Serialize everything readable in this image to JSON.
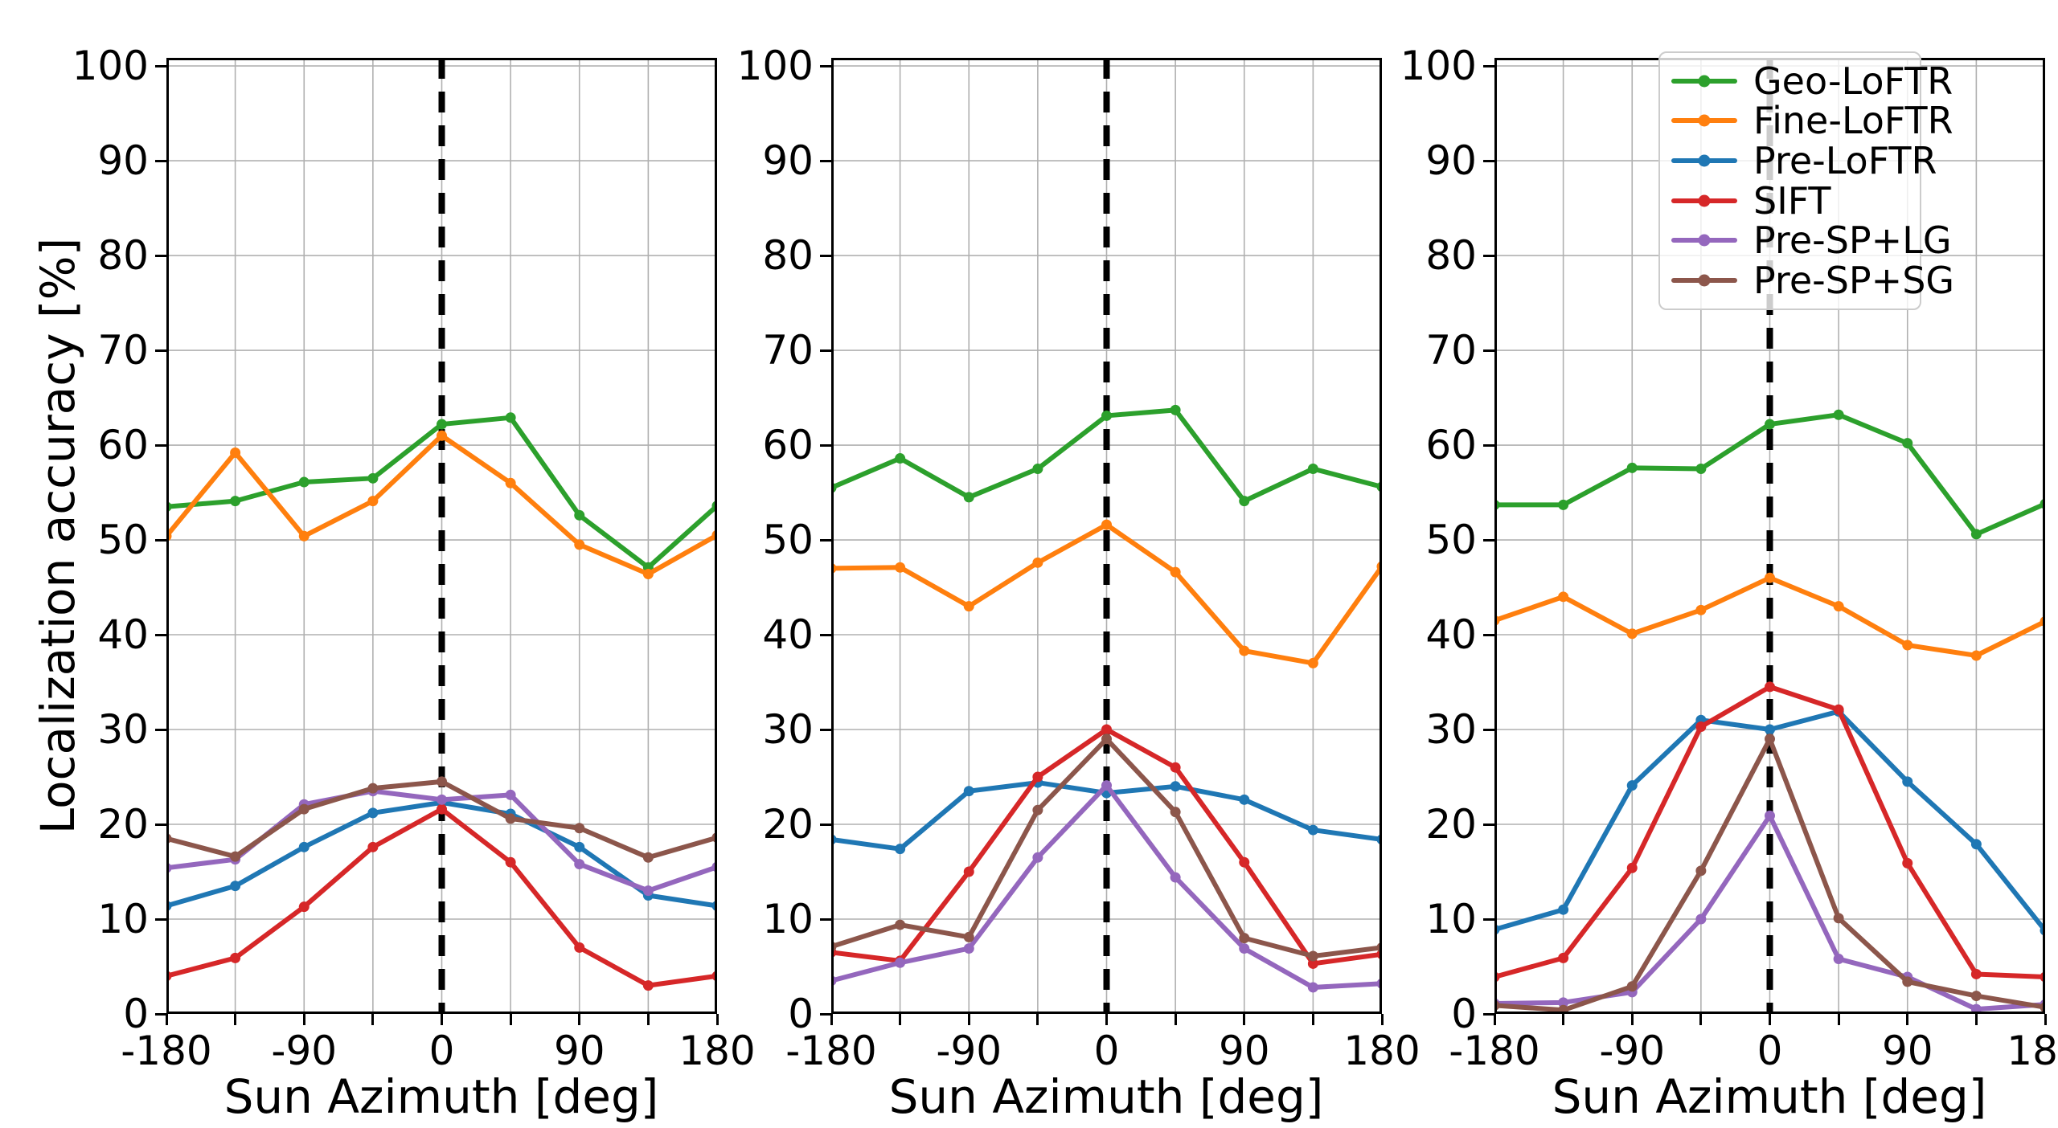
{
  "labels": {
    "ylabel": "Localization accuracy [%]",
    "xlabel": "Sun Azimuth [deg]"
  },
  "axes": {
    "xlim": [
      -180,
      180
    ],
    "ylim": [
      0,
      100.85
    ],
    "x_tick_step_deg": 45,
    "x_labeled_ticks": [
      -180,
      -90,
      0,
      90,
      180
    ],
    "y_ticks": [
      0,
      10,
      20,
      30,
      40,
      50,
      60,
      70,
      80,
      90,
      100
    ],
    "vline_x": 0,
    "grid": true,
    "grid_color": "#b0b0b0",
    "spine_color": "#000000",
    "vline_color": "#000000"
  },
  "legend": {
    "position": "upper-right-third-subplot",
    "entries": [
      {
        "label": "Geo-LoFTR",
        "color": "#2ca02c"
      },
      {
        "label": "Fine-LoFTR",
        "color": "#ff7f0e"
      },
      {
        "label": "Pre-LoFTR",
        "color": "#1f77b4"
      },
      {
        "label": "SIFT",
        "color": "#d62728"
      },
      {
        "label": "Pre-SP+LG",
        "color": "#9467bd"
      },
      {
        "label": "Pre-SP+SG",
        "color": "#8c564b"
      }
    ]
  },
  "chart_data": [
    {
      "type": "line",
      "title": "",
      "xlabel": "Sun Azimuth [deg]",
      "ylabel": "Localization accuracy [%]",
      "x": [
        -180,
        -135,
        -90,
        -45,
        0,
        45,
        90,
        135,
        180
      ],
      "series": [
        {
          "name": "Geo-LoFTR",
          "values": [
            53.5,
            54.1,
            56.1,
            56.5,
            62.2,
            62.9,
            52.6,
            47.1,
            53.6
          ]
        },
        {
          "name": "Fine-LoFTR",
          "values": [
            50.4,
            59.2,
            50.4,
            54.1,
            61.0,
            56.0,
            49.5,
            46.4,
            50.5
          ]
        },
        {
          "name": "Pre-LoFTR",
          "values": [
            11.4,
            13.5,
            17.6,
            21.2,
            22.3,
            21.1,
            17.6,
            12.5,
            11.4
          ]
        },
        {
          "name": "SIFT",
          "values": [
            4.0,
            5.9,
            11.3,
            17.6,
            21.6,
            16.0,
            7.0,
            3.0,
            4.0
          ]
        },
        {
          "name": "Pre-SP+LG",
          "values": [
            15.4,
            16.3,
            22.1,
            23.5,
            22.6,
            23.1,
            15.8,
            13.0,
            15.5
          ]
        },
        {
          "name": "Pre-SP+SG",
          "values": [
            18.5,
            16.6,
            21.6,
            23.8,
            24.5,
            20.6,
            19.6,
            16.5,
            18.6
          ]
        }
      ]
    },
    {
      "type": "line",
      "title": "",
      "xlabel": "Sun Azimuth [deg]",
      "x": [
        -180,
        -135,
        -90,
        -45,
        0,
        45,
        90,
        135,
        180
      ],
      "series": [
        {
          "name": "Geo-LoFTR",
          "values": [
            55.5,
            58.6,
            54.5,
            57.5,
            63.1,
            63.7,
            54.1,
            57.5,
            55.6
          ]
        },
        {
          "name": "Fine-LoFTR",
          "values": [
            47.0,
            47.1,
            43.0,
            47.6,
            51.6,
            46.6,
            38.3,
            37.0,
            47.2
          ]
        },
        {
          "name": "Pre-LoFTR",
          "values": [
            18.4,
            17.4,
            23.5,
            24.4,
            23.3,
            24.0,
            22.6,
            19.4,
            18.4
          ]
        },
        {
          "name": "SIFT",
          "values": [
            6.5,
            5.6,
            15.0,
            25.0,
            30.0,
            26.0,
            16.0,
            5.3,
            6.3
          ]
        },
        {
          "name": "Pre-SP+LG",
          "values": [
            3.5,
            5.4,
            6.9,
            16.5,
            24.1,
            14.4,
            6.9,
            2.8,
            3.2
          ]
        },
        {
          "name": "Pre-SP+SG",
          "values": [
            7.1,
            9.4,
            8.1,
            21.5,
            29.0,
            21.3,
            8.0,
            6.1,
            7.0
          ]
        }
      ]
    },
    {
      "type": "line",
      "title": "",
      "xlabel": "Sun Azimuth [deg]",
      "x": [
        -180,
        -135,
        -90,
        -45,
        0,
        45,
        90,
        135,
        180
      ],
      "series": [
        {
          "name": "Geo-LoFTR",
          "values": [
            53.7,
            53.7,
            57.6,
            57.5,
            62.2,
            63.2,
            60.2,
            50.6,
            53.8
          ]
        },
        {
          "name": "Fine-LoFTR",
          "values": [
            41.5,
            44.0,
            40.1,
            42.6,
            46.0,
            43.0,
            38.9,
            37.8,
            41.4
          ]
        },
        {
          "name": "Pre-LoFTR",
          "values": [
            8.9,
            11.0,
            24.1,
            31.0,
            30.0,
            31.9,
            24.5,
            17.9,
            8.8
          ]
        },
        {
          "name": "SIFT",
          "values": [
            3.9,
            5.9,
            15.4,
            30.3,
            34.5,
            32.1,
            15.9,
            4.2,
            3.9
          ]
        },
        {
          "name": "Pre-SP+LG",
          "values": [
            1.1,
            1.2,
            2.3,
            10.0,
            20.9,
            5.8,
            3.9,
            0.5,
            1.0
          ]
        },
        {
          "name": "Pre-SP+SG",
          "values": [
            0.9,
            0.4,
            2.9,
            15.1,
            29.0,
            10.1,
            3.4,
            1.9,
            0.7
          ]
        }
      ]
    }
  ]
}
